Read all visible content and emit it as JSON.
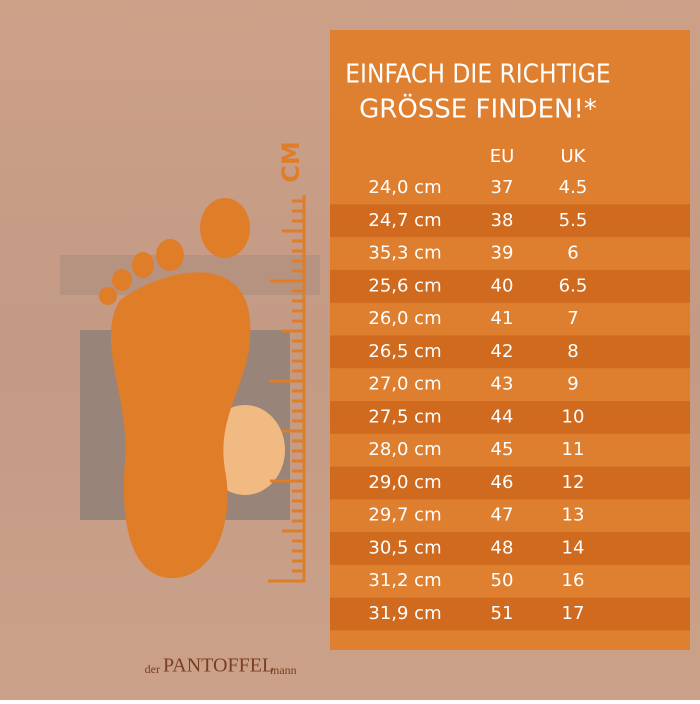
{
  "title": [
    "EINFACH DIE RICHTIGE",
    "GRÖSSE FINDEN!*"
  ],
  "ruler_label": "CM",
  "table": {
    "header": [
      "",
      "EU",
      "UK"
    ],
    "rows": [
      [
        "24,0 cm",
        "37",
        "4.5"
      ],
      [
        "24,7 cm",
        "38",
        "5.5"
      ],
      [
        "35,3 cm",
        "39",
        "6"
      ],
      [
        "25,6 cm",
        "40",
        "6.5"
      ],
      [
        "26,0 cm",
        "41",
        "7"
      ],
      [
        "26,5 cm",
        "42",
        "8"
      ],
      [
        "27,0 cm",
        "43",
        "9"
      ],
      [
        "27,5 cm",
        "44",
        "10"
      ],
      [
        "28,0 cm",
        "45",
        "11"
      ],
      [
        "29,0 cm",
        "46",
        "12"
      ],
      [
        "29,7 cm",
        "47",
        "13"
      ],
      [
        "30,5 cm",
        "48",
        "14"
      ],
      [
        "31,2 cm",
        "50",
        "16"
      ],
      [
        "31,9 cm",
        "51",
        "17"
      ]
    ]
  },
  "brand": {
    "prefix": "der",
    "name": "PANTOFFEL",
    "suffix": "mann"
  }
}
